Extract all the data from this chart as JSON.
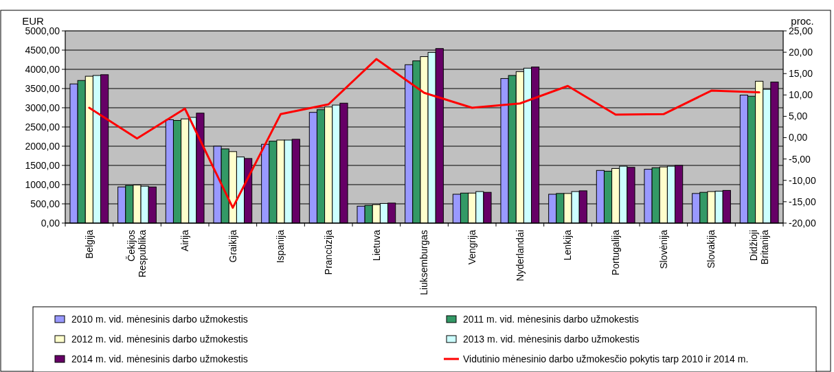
{
  "chart_data": {
    "type": "bar",
    "ylabel": "EUR",
    "y2label": "proc.",
    "categories": [
      "Belgija",
      "Čekijos\nRespublika",
      "Airija",
      "Graikija",
      "Ispanija",
      "Prancūzija",
      "Lietuva",
      "Liuksemburgas",
      "Vengrija",
      "Nyderlandai",
      "Lenkija",
      "Portugalija",
      "Slovėnija",
      "Slovakija",
      "Didžioji\nBritanija"
    ],
    "series": [
      {
        "name": "2010 m. vid. mėnesinis darbo užmokestis",
        "color": "#9999ff",
        "values": [
          3620,
          940,
          2690,
          2000,
          2050,
          2880,
          440,
          4120,
          750,
          3760,
          750,
          1370,
          1400,
          770,
          3330
        ]
      },
      {
        "name": "2011 m. vid. mėnesinis darbo užmokestis",
        "color": "#339966",
        "values": [
          3710,
          980,
          2670,
          1930,
          2130,
          2950,
          460,
          4220,
          780,
          3840,
          770,
          1350,
          1440,
          800,
          3300
        ]
      },
      {
        "name": "2012 m. vid. mėnesinis darbo užmokestis",
        "color": "#ffffcc",
        "values": [
          3820,
          990,
          2710,
          1860,
          2160,
          3020,
          480,
          4330,
          780,
          3940,
          770,
          1420,
          1460,
          820,
          3690
        ]
      },
      {
        "name": "2013 m. vid. mėnesinis darbo užmokestis",
        "color": "#ccffff",
        "values": [
          3840,
          960,
          2750,
          1720,
          2160,
          3070,
          510,
          4440,
          820,
          4030,
          820,
          1480,
          1480,
          830,
          3480
        ]
      },
      {
        "name": "2014 m. vid. mėnesinis darbo užmokestis",
        "color": "#660066",
        "values": [
          3860,
          940,
          2860,
          1680,
          2180,
          3120,
          520,
          4540,
          800,
          4060,
          840,
          1450,
          1500,
          850,
          3670
        ]
      },
      {
        "name": "Vidutinio mėnesinio darbo užmokesčio pokytis tarp 2010 ir 2014 m.",
        "color": "#ff0000",
        "type": "line",
        "axis": "y2",
        "values": [
          7.0,
          -0.2,
          6.8,
          -16.4,
          5.5,
          7.8,
          18.4,
          10.5,
          7.0,
          8.0,
          12.1,
          5.4,
          5.5,
          11.0,
          10.6
        ]
      }
    ],
    "ylim": [
      0,
      5000
    ],
    "yticks": [
      {
        "value": 0,
        "label": "0,00"
      },
      {
        "value": 500,
        "label": "500,00"
      },
      {
        "value": 1000,
        "label": "1000,00"
      },
      {
        "value": 1500,
        "label": "1500,00"
      },
      {
        "value": 2000,
        "label": "2000,00"
      },
      {
        "value": 2500,
        "label": "2500,00"
      },
      {
        "value": 3000,
        "label": "3000,00"
      },
      {
        "value": 3500,
        "label": "3500,00"
      },
      {
        "value": 4000,
        "label": "4000,00"
      },
      {
        "value": 4500,
        "label": "4500,00"
      },
      {
        "value": 5000,
        "label": "5000,00"
      }
    ],
    "y2lim": [
      -20,
      25
    ],
    "y2ticks": [
      {
        "value": -20,
        "label": "-20,00"
      },
      {
        "value": -15,
        "label": "-15,00"
      },
      {
        "value": -10,
        "label": "-10,00"
      },
      {
        "value": -5,
        "label": "-5,00"
      },
      {
        "value": 0,
        "label": "0,00"
      },
      {
        "value": 5,
        "label": "5,00"
      },
      {
        "value": 10,
        "label": "10,00"
      },
      {
        "value": 15,
        "label": "15,00"
      },
      {
        "value": 20,
        "label": "20,00"
      },
      {
        "value": 25,
        "label": "25,00"
      }
    ],
    "grid": "y",
    "legend": "bottom"
  }
}
